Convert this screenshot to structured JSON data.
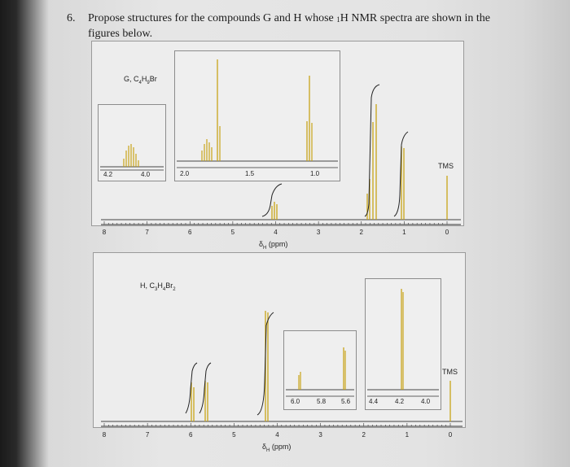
{
  "question": {
    "number": "6.",
    "text_line1": "Propose structures for the compounds G and H whose ",
    "nucleus_prefix": "1",
    "text_line1_rest": "H NMR spectra are shown in the",
    "text_line2": "figures below."
  },
  "colors": {
    "peak": "#c8a418",
    "integral": "#222222",
    "axis": "#333333"
  },
  "spectrum_g": {
    "compound_label": "G, C",
    "formula_sub1": "4",
    "formula_mid": "H",
    "formula_sub2": "9",
    "formula_end": "Br",
    "tms_label": "TMS",
    "axis_ticks": [
      "8",
      "7",
      "6",
      "5",
      "4",
      "3",
      "2",
      "1",
      "0"
    ],
    "axis_label_symbol": "δ",
    "axis_label_sub": "H",
    "axis_label_unit": "(ppm)",
    "inset_left_ticks": [
      "4.2",
      "4.0"
    ],
    "inset_right_ticks": [
      "2.0",
      "1.5",
      "1.0"
    ]
  },
  "spectrum_h": {
    "compound_label": "H, C",
    "formula_sub1": "3",
    "formula_mid": "H",
    "formula_sub2": "4",
    "formula_end": "Br",
    "formula_sub3": "2",
    "tms_label": "TMS",
    "axis_ticks": [
      "8",
      "7",
      "6",
      "5",
      "4",
      "3",
      "2",
      "1",
      "0"
    ],
    "axis_label_symbol": "δ",
    "axis_label_sub": "H",
    "axis_label_unit": "(ppm)",
    "inset_left_ticks": [
      "6.0",
      "5.8",
      "5.6"
    ],
    "inset_right_ticks": [
      "4.4",
      "4.2",
      "4.0"
    ]
  }
}
